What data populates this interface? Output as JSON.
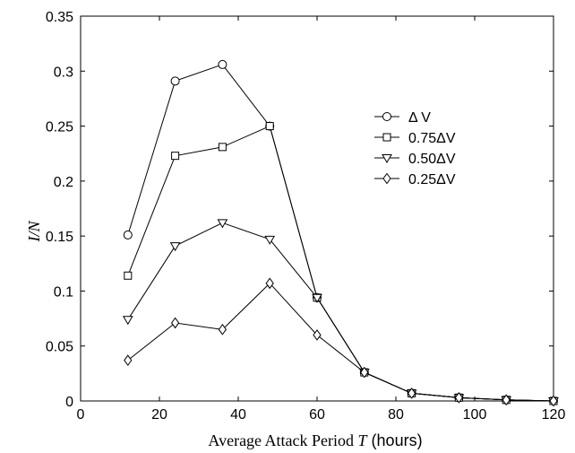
{
  "chart_data": {
    "type": "line",
    "title": "",
    "xlabel": {
      "prefix": "Average Attack Period ",
      "var": "T",
      "suffix": " (hours)"
    },
    "ylabel": "I/N",
    "xlim": [
      0,
      120
    ],
    "ylim": [
      0,
      0.35
    ],
    "xticks": [
      0,
      20,
      40,
      60,
      80,
      100,
      120
    ],
    "yticks": [
      0,
      0.05,
      0.1,
      0.15,
      0.2,
      0.25,
      0.3,
      0.35
    ],
    "xtick_labels": [
      "0",
      "20",
      "40",
      "60",
      "80",
      "100",
      "120"
    ],
    "ytick_labels": [
      "0",
      "0.05",
      "0.1",
      "0.15",
      "0.2",
      "0.25",
      "0.3",
      "0.35"
    ],
    "grid": false,
    "legend_position": "right",
    "x": [
      12,
      24,
      36,
      48,
      60,
      72,
      84,
      96,
      108,
      120
    ],
    "series": [
      {
        "name": "Δ V",
        "marker": "circle",
        "values": [
          0.151,
          0.291,
          0.306,
          0.25,
          0.094,
          0.026,
          0.007,
          0.003,
          0.001,
          0.0
        ]
      },
      {
        "name": "0.75ΔV",
        "marker": "square",
        "values": [
          0.114,
          0.223,
          0.231,
          0.25,
          0.094,
          0.026,
          0.007,
          0.003,
          0.001,
          0.0
        ]
      },
      {
        "name": "0.50ΔV",
        "marker": "triangle-down",
        "values": [
          0.074,
          0.141,
          0.162,
          0.147,
          0.094,
          0.026,
          0.007,
          0.003,
          0.001,
          0.0
        ]
      },
      {
        "name": "0.25ΔV",
        "marker": "diamond",
        "values": [
          0.037,
          0.071,
          0.065,
          0.107,
          0.06,
          0.026,
          0.007,
          0.003,
          0.001,
          0.0
        ]
      }
    ],
    "colors": {
      "line": "#000000",
      "background": "#ffffff"
    }
  }
}
